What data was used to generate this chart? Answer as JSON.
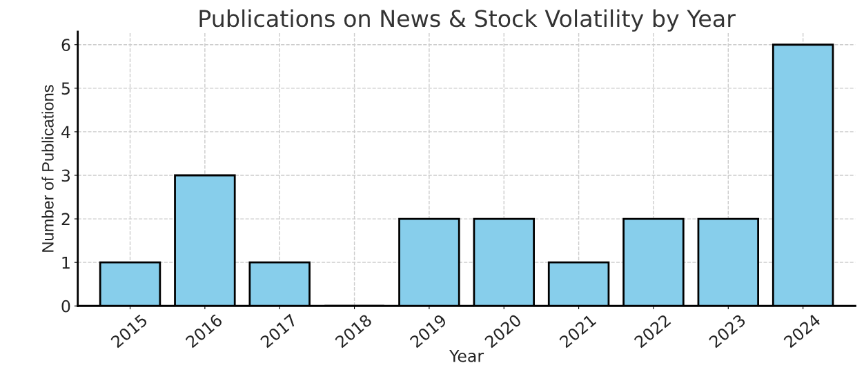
{
  "chart_data": {
    "type": "bar",
    "title": "Publications on News & Stock Volatility by Year",
    "xlabel": "Year",
    "ylabel": "Number of Publications",
    "categories": [
      "2015",
      "2016",
      "2017",
      "2018",
      "2019",
      "2020",
      "2021",
      "2022",
      "2023",
      "2024"
    ],
    "values": [
      1,
      3,
      1,
      0,
      2,
      2,
      1,
      2,
      2,
      6
    ],
    "color": "#87ceeb",
    "ylim": [
      0,
      6.3
    ],
    "yticks": [
      0,
      1,
      2,
      3,
      4,
      5,
      6
    ],
    "grid": true
  }
}
